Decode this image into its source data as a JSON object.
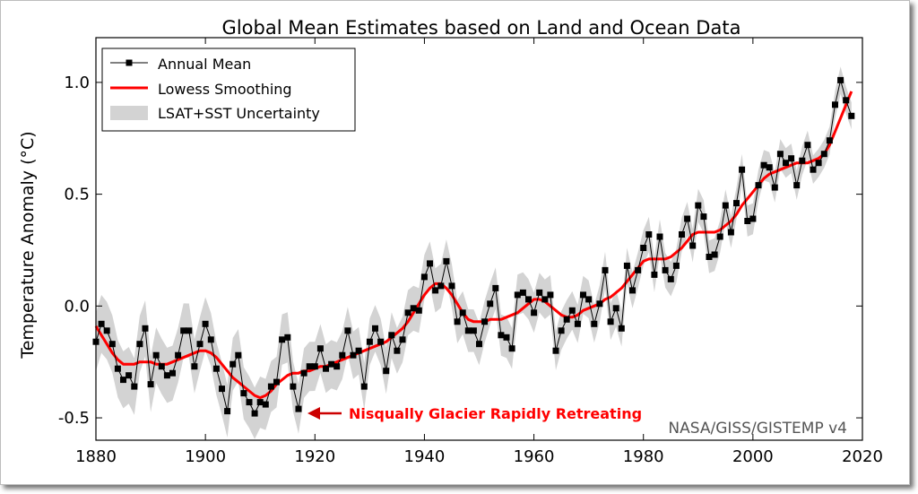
{
  "chart_data": {
    "type": "line",
    "title": "Global Mean Estimates based on Land and Ocean Data",
    "xlabel": "",
    "ylabel": "Temperature Anomaly (°C)",
    "xlim": [
      1880,
      2020
    ],
    "ylim": [
      -0.6,
      1.2
    ],
    "xticks": [
      "1880",
      "1900",
      "1920",
      "1940",
      "1960",
      "1980",
      "2000",
      "2020"
    ],
    "yticks": [
      "1.0",
      "0.5",
      "0.0",
      "-0.5"
    ],
    "grid": false,
    "legend_position": "top-left",
    "watermark": "NASA/GISS/GISTEMP v4",
    "annotation": {
      "text": "Nisqually Glacier Rapidly Retreating",
      "x": 1917,
      "y": -0.46,
      "color": "#ff0000"
    },
    "x": [
      1880,
      1881,
      1882,
      1883,
      1884,
      1885,
      1886,
      1887,
      1888,
      1889,
      1890,
      1891,
      1892,
      1893,
      1894,
      1895,
      1896,
      1897,
      1898,
      1899,
      1900,
      1901,
      1902,
      1903,
      1904,
      1905,
      1906,
      1907,
      1908,
      1909,
      1910,
      1911,
      1912,
      1913,
      1914,
      1915,
      1916,
      1917,
      1918,
      1919,
      1920,
      1921,
      1922,
      1923,
      1924,
      1925,
      1926,
      1927,
      1928,
      1929,
      1930,
      1931,
      1932,
      1933,
      1934,
      1935,
      1936,
      1937,
      1938,
      1939,
      1940,
      1941,
      1942,
      1943,
      1944,
      1945,
      1946,
      1947,
      1948,
      1949,
      1950,
      1951,
      1952,
      1953,
      1954,
      1955,
      1956,
      1957,
      1958,
      1959,
      1960,
      1961,
      1962,
      1963,
      1964,
      1965,
      1966,
      1967,
      1968,
      1969,
      1970,
      1971,
      1972,
      1973,
      1974,
      1975,
      1976,
      1977,
      1978,
      1979,
      1980,
      1981,
      1982,
      1983,
      1984,
      1985,
      1986,
      1987,
      1988,
      1989,
      1990,
      1991,
      1992,
      1993,
      1994,
      1995,
      1996,
      1997,
      1998,
      1999,
      2000,
      2001,
      2002,
      2003,
      2004,
      2005,
      2006,
      2007,
      2008,
      2009,
      2010,
      2011,
      2012,
      2013,
      2014,
      2015,
      2016,
      2017,
      2018
    ],
    "series": [
      {
        "name": "Annual Mean",
        "color": "#000000",
        "marker": "square",
        "values": [
          -0.16,
          -0.08,
          -0.11,
          -0.17,
          -0.28,
          -0.33,
          -0.31,
          -0.36,
          -0.17,
          -0.1,
          -0.35,
          -0.22,
          -0.27,
          -0.31,
          -0.3,
          -0.22,
          -0.11,
          -0.11,
          -0.27,
          -0.17,
          -0.08,
          -0.15,
          -0.28,
          -0.37,
          -0.47,
          -0.26,
          -0.22,
          -0.39,
          -0.43,
          -0.48,
          -0.43,
          -0.44,
          -0.36,
          -0.34,
          -0.15,
          -0.14,
          -0.36,
          -0.46,
          -0.3,
          -0.27,
          -0.27,
          -0.19,
          -0.28,
          -0.26,
          -0.27,
          -0.22,
          -0.11,
          -0.22,
          -0.2,
          -0.36,
          -0.16,
          -0.1,
          -0.16,
          -0.29,
          -0.13,
          -0.2,
          -0.15,
          -0.03,
          -0.01,
          -0.02,
          0.13,
          0.19,
          0.07,
          0.09,
          0.2,
          0.09,
          -0.07,
          -0.03,
          -0.11,
          -0.11,
          -0.17,
          -0.07,
          0.01,
          0.08,
          -0.13,
          -0.14,
          -0.19,
          0.05,
          0.06,
          0.03,
          -0.03,
          0.06,
          0.03,
          0.05,
          -0.2,
          -0.11,
          -0.06,
          -0.02,
          -0.08,
          0.05,
          0.03,
          -0.08,
          0.01,
          0.16,
          -0.07,
          -0.01,
          -0.1,
          0.18,
          0.07,
          0.16,
          0.26,
          0.32,
          0.14,
          0.31,
          0.16,
          0.12,
          0.18,
          0.32,
          0.39,
          0.27,
          0.45,
          0.4,
          0.22,
          0.23,
          0.31,
          0.45,
          0.33,
          0.46,
          0.61,
          0.38,
          0.39,
          0.54,
          0.63,
          0.62,
          0.53,
          0.68,
          0.64,
          0.66,
          0.54,
          0.65,
          0.72,
          0.61,
          0.64,
          0.68,
          0.74,
          0.9,
          1.01,
          0.92,
          0.85
        ]
      },
      {
        "name": "Lowess Smoothing",
        "color": "#ff0000",
        "values": [
          -0.09,
          -0.13,
          -0.17,
          -0.21,
          -0.24,
          -0.26,
          -0.26,
          -0.26,
          -0.25,
          -0.25,
          -0.25,
          -0.26,
          -0.26,
          -0.26,
          -0.25,
          -0.24,
          -0.23,
          -0.22,
          -0.21,
          -0.2,
          -0.2,
          -0.21,
          -0.23,
          -0.26,
          -0.29,
          -0.32,
          -0.34,
          -0.36,
          -0.38,
          -0.4,
          -0.41,
          -0.4,
          -0.38,
          -0.35,
          -0.33,
          -0.31,
          -0.3,
          -0.3,
          -0.29,
          -0.29,
          -0.28,
          -0.27,
          -0.27,
          -0.26,
          -0.25,
          -0.24,
          -0.23,
          -0.22,
          -0.21,
          -0.2,
          -0.19,
          -0.18,
          -0.17,
          -0.16,
          -0.14,
          -0.12,
          -0.1,
          -0.07,
          -0.03,
          0.01,
          0.05,
          0.08,
          0.1,
          0.1,
          0.08,
          0.05,
          0.01,
          -0.03,
          -0.06,
          -0.07,
          -0.07,
          -0.07,
          -0.06,
          -0.06,
          -0.06,
          -0.05,
          -0.04,
          -0.03,
          -0.01,
          0.01,
          0.03,
          0.03,
          0.02,
          0.0,
          -0.02,
          -0.04,
          -0.05,
          -0.05,
          -0.04,
          -0.02,
          -0.01,
          0.0,
          0.01,
          0.03,
          0.04,
          0.06,
          0.08,
          0.11,
          0.14,
          0.17,
          0.2,
          0.21,
          0.21,
          0.21,
          0.21,
          0.22,
          0.24,
          0.26,
          0.29,
          0.32,
          0.33,
          0.33,
          0.33,
          0.33,
          0.34,
          0.36,
          0.38,
          0.41,
          0.45,
          0.48,
          0.51,
          0.54,
          0.57,
          0.59,
          0.6,
          0.61,
          0.62,
          0.63,
          0.64,
          0.64,
          0.64,
          0.65,
          0.66,
          0.68,
          0.72,
          0.78,
          0.84,
          0.9,
          0.96
        ]
      },
      {
        "name": "LSAT+SST Uncertainty",
        "color": "#d3d3d3",
        "type": "band",
        "halfwidth_start": 0.13,
        "halfwidth_end": 0.06
      }
    ]
  }
}
